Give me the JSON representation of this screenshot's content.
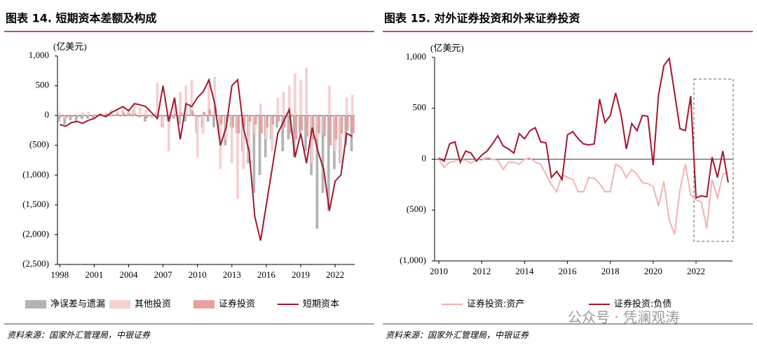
{
  "chart_data": [
    {
      "type": "bar",
      "title": "图表 14. 短期资本差额及构成",
      "y_label": "(亿美元)",
      "source": "资料来源：国家外汇管理局，中银证券",
      "x": [
        1998,
        1998.5,
        1999,
        1999.5,
        2000,
        2000.5,
        2001,
        2001.5,
        2002,
        2002.5,
        2003,
        2003.5,
        2004,
        2004.5,
        2005,
        2005.5,
        2006,
        2006.5,
        2007,
        2007.5,
        2008,
        2008.5,
        2009,
        2009.5,
        2010,
        2010.5,
        2011,
        2011.5,
        2012,
        2012.5,
        2013,
        2013.5,
        2014,
        2014.5,
        2015,
        2015.5,
        2016,
        2016.5,
        2017,
        2017.5,
        2018,
        2018.5,
        2019,
        2019.5,
        2020,
        2020.5,
        2021,
        2021.5,
        2022,
        2022.5,
        2023,
        2023.5
      ],
      "xlim": [
        1997.8,
        2023.7
      ],
      "xticks": [
        1998,
        2001,
        2004,
        2007,
        2010,
        2013,
        2016,
        2019,
        2022
      ],
      "ylim": [
        -2500,
        1000
      ],
      "yticks": [
        {
          "value": 1000,
          "label": "1,000"
        },
        500,
        0,
        {
          "value": -500,
          "label": "(500)"
        },
        {
          "value": -1000,
          "label": "(1,000)"
        },
        {
          "value": -1500,
          "label": "(1,500)"
        },
        {
          "value": -2000,
          "label": "(2,000)"
        },
        {
          "value": -2500,
          "label": "(2,500)"
        }
      ],
      "negative_tick_color": "#c00000",
      "series": [
        {
          "name": "净误差与遗漏",
          "type": "bar",
          "color": "#b3b3b3",
          "values": [
            -100,
            -150,
            -80,
            -100,
            -60,
            -50,
            -50,
            0,
            0,
            50,
            20,
            0,
            50,
            80,
            -30,
            -100,
            0,
            50,
            -200,
            -100,
            -50,
            -150,
            -100,
            200,
            -300,
            -200,
            -100,
            -200,
            -300,
            -500,
            -200,
            -300,
            -600,
            -800,
            -1300,
            -1000,
            -700,
            -400,
            -200,
            -600,
            -400,
            -700,
            -300,
            -600,
            -1000,
            -1900,
            -1300,
            -1600,
            -900,
            -800,
            -500,
            -600
          ]
        },
        {
          "name": "其他投资",
          "type": "bar",
          "color": "#f6cfcf",
          "values": [
            50,
            -50,
            0,
            30,
            50,
            60,
            20,
            30,
            50,
            100,
            80,
            150,
            120,
            200,
            150,
            100,
            -50,
            550,
            -200,
            -600,
            300,
            400,
            500,
            600,
            -700,
            -300,
            600,
            650,
            -900,
            -400,
            -800,
            -1400,
            -900,
            -700,
            -300,
            200,
            -400,
            -600,
            300,
            400,
            500,
            700,
            600,
            800,
            -800,
            -400,
            -300,
            500,
            -600,
            -800,
            300,
            350
          ]
        },
        {
          "name": "证券投资",
          "type": "bar",
          "color": "#e8a0a0",
          "values": [
            -30,
            -40,
            -20,
            -30,
            -10,
            0,
            10,
            20,
            30,
            20,
            30,
            50,
            40,
            30,
            -20,
            -50,
            20,
            -30,
            -20,
            -50,
            30,
            50,
            20,
            80,
            -30,
            60,
            100,
            150,
            -150,
            -100,
            -200,
            -300,
            -200,
            -100,
            -150,
            -300,
            -200,
            -150,
            -100,
            -200,
            -300,
            -400,
            -250,
            -350,
            -400,
            -300,
            -350,
            -500,
            -400,
            -300,
            -250,
            -300
          ]
        },
        {
          "name": "短期资本",
          "type": "line",
          "color": "#a3172f",
          "values": [
            -150,
            -180,
            -120,
            -100,
            -130,
            -80,
            -50,
            20,
            -20,
            50,
            100,
            150,
            80,
            200,
            180,
            150,
            50,
            -50,
            500,
            -100,
            300,
            -400,
            200,
            150,
            300,
            400,
            600,
            200,
            -500,
            -200,
            500,
            600,
            -200,
            -600,
            -1700,
            -2100,
            -1500,
            -900,
            -300,
            -100,
            100,
            -700,
            -300,
            -800,
            -200,
            -600,
            -900,
            -1600,
            -1100,
            -1000,
            -300,
            -350
          ]
        }
      ]
    },
    {
      "type": "line",
      "title": "图表 15. 对外证券投资和外来证券投资",
      "y_label": "(亿美元)",
      "source": "资料来源：国家外汇管理局，中银证券",
      "watermark": "公众号 · 凭澜观涛",
      "x": [
        2010,
        2010.25,
        2010.5,
        2010.75,
        2011,
        2011.25,
        2011.5,
        2011.75,
        2012,
        2012.25,
        2012.5,
        2012.75,
        2013,
        2013.25,
        2013.5,
        2013.75,
        2014,
        2014.25,
        2014.5,
        2014.75,
        2015,
        2015.25,
        2015.5,
        2015.75,
        2016,
        2016.25,
        2016.5,
        2016.75,
        2017,
        2017.25,
        2017.5,
        2017.75,
        2018,
        2018.25,
        2018.5,
        2018.75,
        2019,
        2019.25,
        2019.5,
        2019.75,
        2020,
        2020.25,
        2020.5,
        2020.75,
        2021,
        2021.25,
        2021.5,
        2021.75,
        2022,
        2022.25,
        2022.5,
        2022.75,
        2023,
        2023.25,
        2023.5
      ],
      "xlim": [
        2009.8,
        2023.7
      ],
      "xticks": [
        2010,
        2012,
        2014,
        2016,
        2018,
        2020,
        2022
      ],
      "ylim": [
        -1000,
        1000
      ],
      "yticks": [
        {
          "value": 1000,
          "label": "1,000"
        },
        500,
        0,
        {
          "value": -500,
          "label": "(500)"
        },
        {
          "value": -1000,
          "label": "(1,000)"
        }
      ],
      "negative_tick_color": "#c00000",
      "series": [
        {
          "name": "证券投资:资产",
          "type": "line",
          "color": "#f2b3b3",
          "values": [
            0,
            -80,
            -30,
            -20,
            0,
            -10,
            -40,
            0,
            -10,
            20,
            0,
            -10,
            -100,
            -30,
            -30,
            -50,
            0,
            10,
            -30,
            -50,
            -150,
            -250,
            -320,
            -150,
            -180,
            -200,
            -320,
            -320,
            -180,
            -190,
            -240,
            -320,
            -320,
            -50,
            -80,
            -180,
            -100,
            -150,
            -230,
            -240,
            -270,
            -460,
            -220,
            -600,
            -740,
            -300,
            -50,
            -350,
            -400,
            -420,
            -680,
            -200,
            -380,
            -150,
            -130
          ]
        },
        {
          "name": "证券投资:负债",
          "type": "line",
          "color": "#a3172f",
          "values": [
            10,
            -20,
            150,
            170,
            -30,
            80,
            60,
            -20,
            40,
            80,
            150,
            230,
            130,
            100,
            60,
            250,
            200,
            280,
            310,
            170,
            160,
            -180,
            -120,
            -200,
            240,
            270,
            200,
            150,
            140,
            150,
            590,
            360,
            430,
            650,
            440,
            100,
            350,
            280,
            430,
            420,
            -60,
            630,
            920,
            990,
            650,
            300,
            280,
            620,
            -380,
            -360,
            -370,
            20,
            -180,
            80,
            -230
          ]
        }
      ]
    }
  ]
}
